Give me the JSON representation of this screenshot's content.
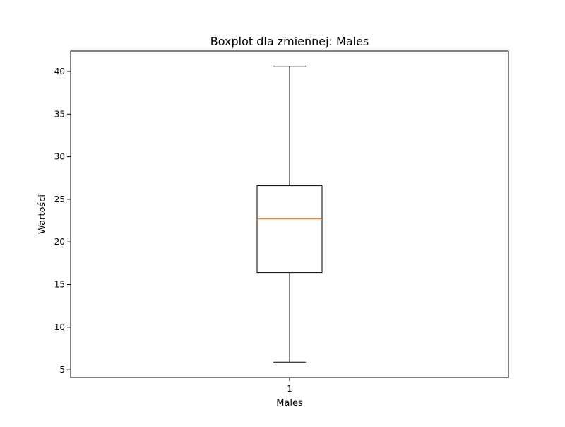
{
  "chart_data": {
    "type": "boxplot",
    "title": "Boxplot dla zmiennej: Males",
    "xlabel": "Males",
    "ylabel": "Wartości",
    "categories": [
      "1"
    ],
    "ylim": [
      4.1,
      42.4
    ],
    "yticks": [
      5,
      10,
      15,
      20,
      25,
      30,
      35,
      40
    ],
    "boxes": [
      {
        "category": "1",
        "whisker_low": 5.9,
        "q1": 16.4,
        "median": 22.7,
        "q3": 26.6,
        "whisker_high": 40.6
      }
    ],
    "grid": false,
    "colors": {
      "box": "#000000",
      "median": "#ff7f0e"
    }
  }
}
